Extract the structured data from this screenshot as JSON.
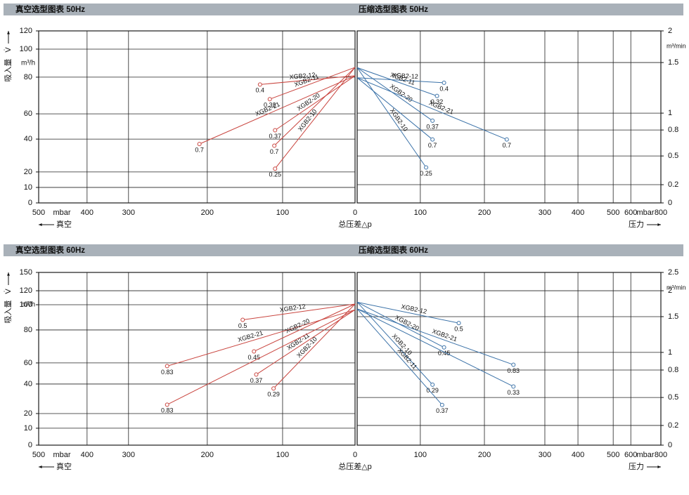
{
  "chart_data": [
    {
      "type": "line",
      "title": "真空选型图表 50Hz",
      "xlim": [
        500,
        0
      ],
      "xticks": [
        500,
        400,
        300,
        200,
        100,
        0
      ],
      "xunit": "mbar",
      "xlabel": "真空",
      "center_label": "总压差△p",
      "ylim": [
        0,
        120
      ],
      "yticks": [
        0,
        10,
        20,
        40,
        60,
        80,
        100,
        120
      ],
      "ylabel": "吸入量",
      "ylabel_symbol": "V̇",
      "yunit": "m³/h",
      "y_axis_side": "left",
      "grid": true,
      "series": [
        {
          "name": "XGB2-12",
          "color": "#c9453f",
          "x": [
            0,
            130
          ],
          "values": [
            81,
            76
          ],
          "point_labels": [
            null,
            0.4
          ]
        },
        {
          "name": "XGB2-11",
          "color": "#c9453f",
          "x": [
            0,
            117
          ],
          "values": [
            87,
            68
          ],
          "point_labels": [
            null,
            0.32
          ]
        },
        {
          "name": "XGB2-21",
          "color": "#c9453f",
          "x": [
            0,
            210
          ],
          "values": [
            81,
            37
          ],
          "point_labels": [
            null,
            0.7
          ]
        },
        {
          "name": "XGB2-20",
          "color": "#c9453f",
          "x": [
            0,
            110
          ],
          "values": [
            81,
            47
          ],
          "point_labels": [
            null,
            0.37
          ]
        },
        {
          "name": null,
          "color": "#c9453f",
          "x": [
            0,
            111
          ],
          "values": [
            87,
            36
          ],
          "point_labels": [
            null,
            0.7
          ]
        },
        {
          "name": "XGB2-10",
          "color": "#c9453f",
          "x": [
            0,
            110
          ],
          "values": [
            87,
            22
          ],
          "point_labels": [
            null,
            0.25
          ]
        }
      ]
    },
    {
      "type": "line",
      "title": "压缩选型图表 50Hz",
      "xlim": [
        0,
        800
      ],
      "xticks": [
        100,
        200,
        300,
        400,
        500,
        600,
        800
      ],
      "xunit": "mbar",
      "xlabel": "压力",
      "ylim": [
        0,
        2
      ],
      "yticks": [
        0,
        0.2,
        0.5,
        0.8,
        1,
        1.5,
        2
      ],
      "yunit": "m³/min",
      "y_axis_side": "right",
      "grid": true,
      "series": [
        {
          "name": "XGB2-12",
          "color": "#3b72a8",
          "x": [
            0,
            137
          ],
          "values": [
            1.35,
            1.3
          ],
          "point_labels": [
            null,
            0.4
          ]
        },
        {
          "name": "XGB2-11",
          "color": "#3b72a8",
          "x": [
            0,
            126
          ],
          "values": [
            1.45,
            1.17
          ],
          "point_labels": [
            null,
            0.32
          ]
        },
        {
          "name": "XGB2-20",
          "color": "#3b72a8",
          "x": [
            0,
            119
          ],
          "values": [
            1.45,
            0.91
          ],
          "point_labels": [
            null,
            0.37
          ]
        },
        {
          "name": null,
          "color": "#3b72a8",
          "x": [
            0,
            119
          ],
          "values": [
            1.35,
            0.69
          ],
          "point_labels": [
            null,
            0.7
          ]
        },
        {
          "name": "XGB2-21",
          "color": "#3b72a8",
          "x": [
            0,
            237
          ],
          "values": [
            1.35,
            0.69
          ],
          "point_labels": [
            null,
            0.7
          ]
        },
        {
          "name": "XGB2-10",
          "color": "#3b72a8",
          "x": [
            0,
            109
          ],
          "values": [
            1.45,
            0.38
          ],
          "point_labels": [
            null,
            0.25
          ]
        }
      ]
    },
    {
      "type": "line",
      "title": "真空选型图表 60Hz",
      "xlim": [
        500,
        0
      ],
      "xticks": [
        500,
        400,
        300,
        200,
        100,
        0
      ],
      "xunit": "mbar",
      "xlabel": "真空",
      "center_label": "总压差△p",
      "ylim": [
        0,
        150
      ],
      "yticks": [
        0,
        10,
        20,
        40,
        60,
        80,
        100,
        120,
        150
      ],
      "ylabel": "吸入量",
      "ylabel_symbol": "V̇",
      "yunit": "m³/h",
      "y_axis_side": "left",
      "grid": true,
      "series": [
        {
          "name": "XGB2-12",
          "color": "#c9453f",
          "x": [
            0,
            153
          ],
          "values": [
            101,
            88
          ],
          "point_labels": [
            null,
            0.5
          ]
        },
        {
          "name": "XGB2-21",
          "color": "#c9453f",
          "x": [
            0,
            251
          ],
          "values": [
            96,
            57
          ],
          "point_labels": [
            null,
            0.83
          ]
        },
        {
          "name": "XGB2-20",
          "color": "#c9453f",
          "x": [
            0,
            138
          ],
          "values": [
            101,
            67
          ],
          "point_labels": [
            null,
            0.45
          ]
        },
        {
          "name": "XGB2-11",
          "color": "#c9453f",
          "x": [
            0,
            135
          ],
          "values": [
            96,
            49
          ],
          "point_labels": [
            null,
            0.37
          ]
        },
        {
          "name": "XGB2-10",
          "color": "#c9453f",
          "x": [
            0,
            112
          ],
          "values": [
            101,
            37
          ],
          "point_labels": [
            null,
            0.29
          ]
        },
        {
          "name": null,
          "color": "#c9453f",
          "x": [
            0,
            251
          ],
          "values": [
            96,
            26
          ],
          "point_labels": [
            null,
            0.83
          ]
        }
      ]
    },
    {
      "type": "line",
      "title": "压缩选型图表 60Hz",
      "xlim": [
        0,
        800
      ],
      "xticks": [
        100,
        200,
        300,
        400,
        500,
        600,
        800
      ],
      "xunit": "mbar",
      "xlabel": "压力",
      "ylim": [
        0,
        2.5
      ],
      "yticks": [
        0,
        0.2,
        0.5,
        0.8,
        1,
        1.5,
        2,
        2.5
      ],
      "yunit": "m³/min",
      "y_axis_side": "right",
      "grid": true,
      "series": [
        {
          "name": "XGB2-12",
          "color": "#3b72a8",
          "x": [
            0,
            160
          ],
          "values": [
            1.78,
            1.41
          ],
          "point_labels": [
            null,
            0.5
          ]
        },
        {
          "name": "XGB2-21",
          "color": "#3b72a8",
          "x": [
            0,
            248
          ],
          "values": [
            1.65,
            0.86
          ],
          "point_labels": [
            null,
            0.83
          ]
        },
        {
          "name": "XGB2-20",
          "color": "#3b72a8",
          "x": [
            0,
            137
          ],
          "values": [
            1.78,
            1.07
          ],
          "point_labels": [
            null,
            0.45
          ]
        },
        {
          "name": "XGB2-10",
          "color": "#3b72a8",
          "x": [
            0,
            119
          ],
          "values": [
            1.78,
            0.64
          ],
          "point_labels": [
            null,
            0.29
          ]
        },
        {
          "name": null,
          "color": "#3b72a8",
          "x": [
            0,
            248
          ],
          "values": [
            1.65,
            0.62
          ],
          "point_labels": [
            null,
            0.33
          ]
        },
        {
          "name": "XGB2-11",
          "color": "#3b72a8",
          "x": [
            0,
            134
          ],
          "values": [
            1.65,
            0.42
          ],
          "point_labels": [
            null,
            0.37
          ]
        }
      ]
    }
  ]
}
